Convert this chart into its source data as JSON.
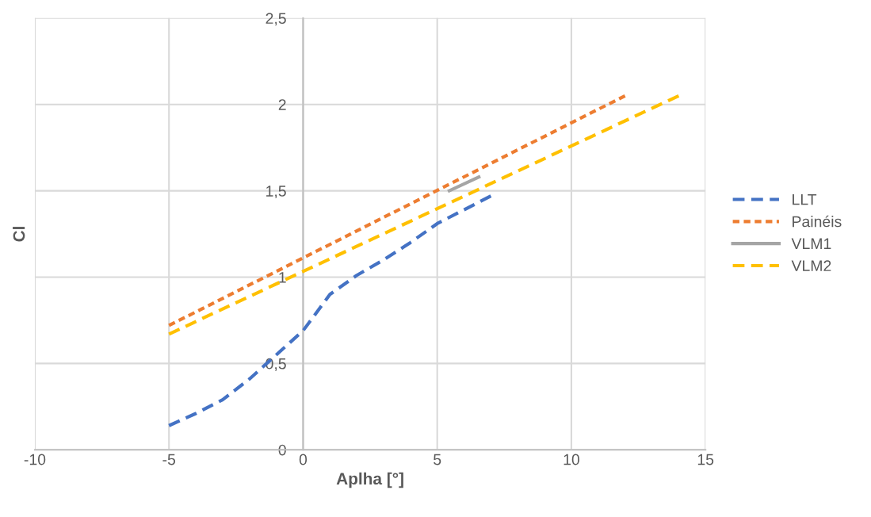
{
  "chart_data": {
    "type": "line",
    "xlabel": "Aplha [°]",
    "ylabel": "Cl",
    "xlim": [
      -10,
      15
    ],
    "xticks": [
      -10,
      -5,
      0,
      5,
      10,
      15
    ],
    "ylim": [
      0,
      2.5
    ],
    "yticks": [
      0,
      {
        "value": 0.5,
        "label": "0,5"
      },
      1,
      {
        "value": 1.5,
        "label": "1,5"
      },
      2,
      {
        "value": 2.5,
        "label": "2,5"
      }
    ],
    "grid": true,
    "legend": "right",
    "marker": "none",
    "series": [
      {
        "name": "LLT",
        "color": "#4472c4",
        "line_style": "dashed",
        "x": [
          -5,
          -4,
          -3,
          -2,
          -1,
          0,
          1,
          2,
          3,
          4,
          5,
          6,
          7
        ],
        "values": [
          0.14,
          0.21,
          0.29,
          0.41,
          0.55,
          0.69,
          0.9,
          1.01,
          1.1,
          1.2,
          1.31,
          1.39,
          1.47
        ]
      },
      {
        "name": "Painéis",
        "color": "#ed7d31",
        "line_style": "dotted",
        "x": [
          -5,
          12
        ],
        "values": [
          0.72,
          2.05
        ]
      },
      {
        "name": "VLM1",
        "color": "#a5a5a5",
        "line_style": "solid",
        "x": [
          5.45,
          6.55
        ],
        "values": [
          1.5,
          1.58
        ]
      },
      {
        "name": "VLM2",
        "color": "#ffc000",
        "line_style": "dashed",
        "x": [
          -5,
          14
        ],
        "values": [
          0.67,
          2.05
        ]
      }
    ]
  }
}
